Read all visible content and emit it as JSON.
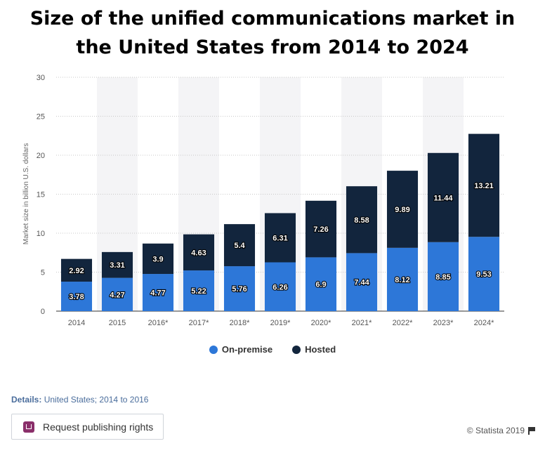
{
  "chart_data": {
    "type": "bar",
    "stacked": true,
    "title": "Size of the unified communications market in the United States from 2014 to 2024",
    "ylabel": "Market size in billion U.S. dollars",
    "xlabel": "",
    "ylim": [
      0,
      30
    ],
    "yticks": [
      0,
      5,
      10,
      15,
      20,
      25,
      30
    ],
    "grid": true,
    "legend_position": "bottom",
    "categories": [
      "2014",
      "2015",
      "2016*",
      "2017*",
      "2018*",
      "2019*",
      "2020*",
      "2021*",
      "2022*",
      "2023*",
      "2024*"
    ],
    "series": [
      {
        "name": "On-premise",
        "color": "#2d77d8",
        "values": [
          3.78,
          4.27,
          4.77,
          5.22,
          5.76,
          6.26,
          6.9,
          7.44,
          8.12,
          8.85,
          9.53
        ]
      },
      {
        "name": "Hosted",
        "color": "#12253d",
        "values": [
          2.92,
          3.31,
          3.9,
          4.63,
          5.4,
          6.31,
          7.26,
          8.58,
          9.89,
          11.44,
          13.21
        ]
      }
    ]
  },
  "title_line1": "Size of the unified communications market in",
  "title_line2": "the United States from 2014 to 2024",
  "details_label": "Details:",
  "details_text": "United States; 2014 to 2016",
  "rights_button": "Request publishing rights",
  "copyright": "© Statista 2019",
  "icons": {
    "rights": "publish-icon",
    "flag": "flag-icon"
  }
}
